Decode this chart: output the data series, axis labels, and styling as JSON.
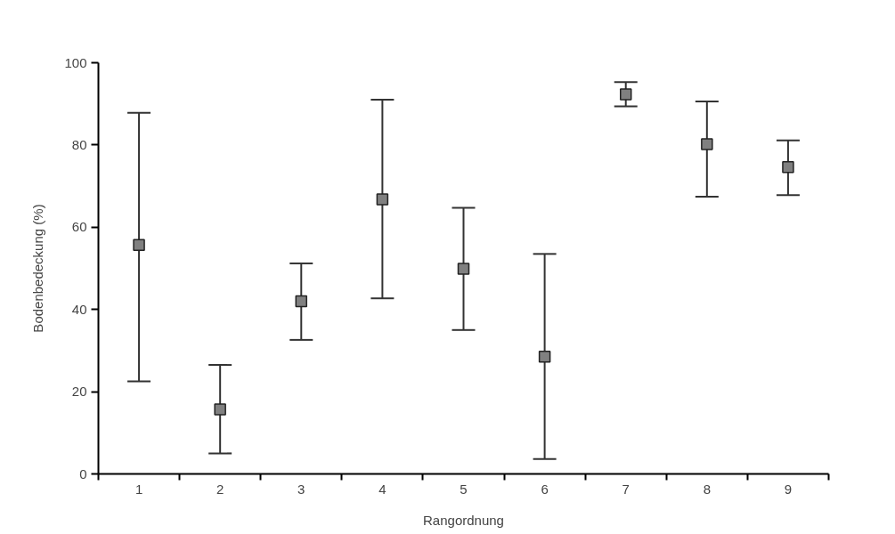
{
  "chart_data": {
    "type": "scatter",
    "xlabel": "Rangordnung",
    "ylabel": "Bodenbedeckung (%)",
    "categories": [
      "1",
      "2",
      "3",
      "4",
      "5",
      "6",
      "7",
      "8",
      "9"
    ],
    "values": [
      55.7,
      15.7,
      42,
      66.8,
      49.9,
      28.5,
      92.3,
      80.2,
      74.6
    ],
    "errors": [
      [
        22.5,
        87.8
      ],
      [
        5,
        26.5
      ],
      [
        32.6,
        51.2
      ],
      [
        42.7,
        91
      ],
      [
        35,
        64.7
      ],
      [
        3.6,
        53.5
      ],
      [
        89.4,
        95.3
      ],
      [
        67.4,
        90.6
      ],
      [
        67.8,
        81.1
      ]
    ],
    "color": "#808080",
    "marker": "square",
    "ylim": [
      0,
      100
    ],
    "yticks": [
      0,
      20,
      40,
      60,
      80,
      100
    ],
    "grid": false
  }
}
